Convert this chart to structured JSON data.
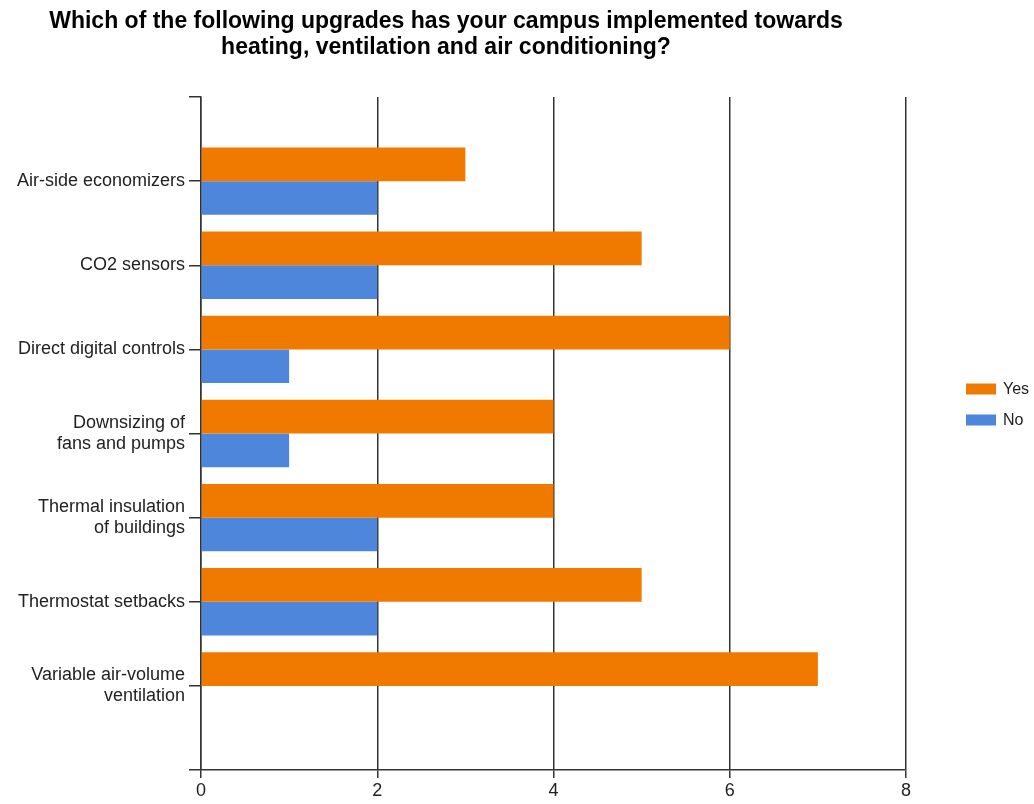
{
  "chart_data": {
    "type": "bar",
    "orientation": "horizontal",
    "title": "Which of the following upgrades has your campus implemented towards heating, ventilation and air conditioning?",
    "categories": [
      "Air-side economizers",
      "CO2 sensors",
      "Direct digital controls",
      "Downsizing of fans and pumps",
      "Thermal insulation of buildings",
      "Thermostat setbacks",
      "Variable air-volume ventilation"
    ],
    "series": [
      {
        "name": "Yes",
        "color": "#f07a00",
        "values": [
          3,
          5,
          6,
          4,
          4,
          5,
          7
        ]
      },
      {
        "name": "No",
        "color": "#4d86db",
        "values": [
          2,
          2,
          1,
          1,
          2,
          2,
          null
        ]
      }
    ],
    "xlim": [
      0,
      8
    ],
    "xticks": [
      0,
      2,
      4,
      6,
      8
    ],
    "grid": "x",
    "legend": "right"
  }
}
